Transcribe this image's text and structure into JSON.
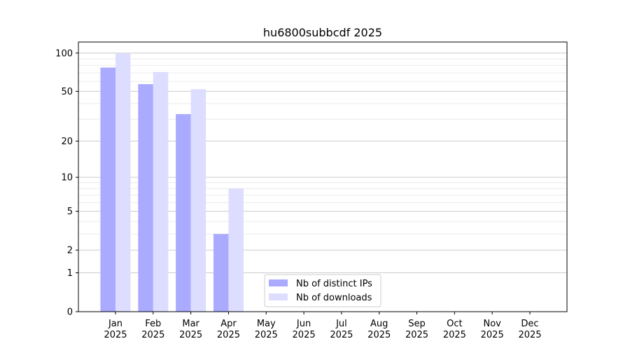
{
  "chart_data": {
    "type": "bar",
    "title": "hu6800subbcdf 2025",
    "xlabel": "",
    "ylabel": "",
    "y_scale": "log(1+y)",
    "ylim": [
      0,
      122
    ],
    "y_ticks": [
      0,
      1,
      2,
      5,
      10,
      20,
      50,
      100
    ],
    "y_tick_labels": [
      "0",
      "1",
      "2",
      "5",
      "10",
      "20",
      "50",
      "100"
    ],
    "categories": [
      "Jan\n2025",
      "Feb\n2025",
      "Mar\n2025",
      "Apr\n2025",
      "May\n2025",
      "Jun\n2025",
      "Jul\n2025",
      "Aug\n2025",
      "Sep\n2025",
      "Oct\n2025",
      "Nov\n2025",
      "Dec\n2025"
    ],
    "series": [
      {
        "name": "Nb of distinct IPs",
        "color": "#aaaaff",
        "values": [
          77,
          57,
          33,
          3,
          0,
          0,
          0,
          0,
          0,
          0,
          0,
          0
        ]
      },
      {
        "name": "Nb of downloads",
        "color": "#ddddff",
        "values": [
          100,
          71,
          52,
          8,
          0,
          0,
          0,
          0,
          0,
          0,
          0,
          0
        ]
      }
    ],
    "grid": true,
    "legend": "bottom-center"
  }
}
